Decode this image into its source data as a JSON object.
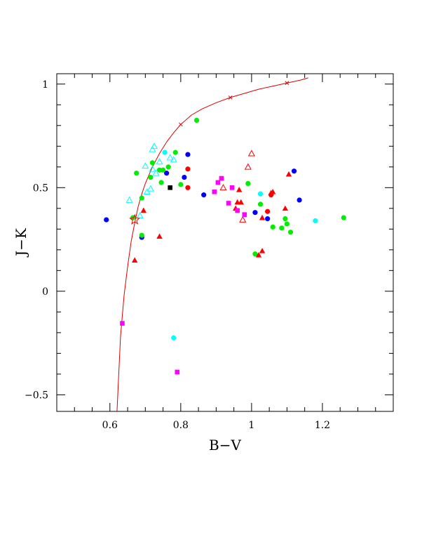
{
  "chart_data": {
    "type": "scatter",
    "xlabel": "B−V",
    "ylabel": "J−K",
    "xlim": [
      0.45,
      1.4
    ],
    "ylim": [
      -0.58,
      1.05
    ],
    "x_ticks": [
      0.6,
      0.8,
      1.0,
      1.2
    ],
    "x_tick_labels": [
      "0.6",
      "0.8",
      "1",
      "1.2"
    ],
    "y_ticks": [
      -0.5,
      0,
      0.5,
      1.0
    ],
    "y_tick_labels": [
      "−0.5",
      "0",
      "0.5",
      "1"
    ],
    "grid": false,
    "colors": {
      "red": "#ff0000",
      "green": "#00ee00",
      "blue": "#0000ff",
      "cyan": "#00ffff",
      "magenta": "#ff00ff",
      "black": "#000000",
      "curve": "#dd0000"
    },
    "curve": {
      "x": [
        0.62,
        0.625,
        0.63,
        0.64,
        0.65,
        0.66,
        0.67,
        0.68,
        0.69,
        0.7,
        0.72,
        0.74,
        0.76,
        0.78,
        0.8,
        0.83,
        0.86,
        0.9,
        0.94,
        0.98,
        1.02,
        1.06,
        1.1,
        1.14,
        1.16
      ],
      "y": [
        -0.58,
        -0.4,
        -0.22,
        -0.02,
        0.12,
        0.24,
        0.33,
        0.41,
        0.47,
        0.52,
        0.6,
        0.665,
        0.72,
        0.765,
        0.805,
        0.85,
        0.88,
        0.91,
        0.935,
        0.955,
        0.975,
        0.99,
        1.005,
        1.02,
        1.03
      ],
      "x_markers": [
        0.8,
        0.94,
        1.1
      ]
    },
    "sun_marker": {
      "x": 0.67,
      "y": 0.345
    },
    "series": [
      {
        "color": "blue",
        "marker": "circle",
        "points": [
          [
            0.59,
            0.345
          ],
          [
            0.69,
            0.26
          ],
          [
            0.76,
            0.57
          ],
          [
            0.82,
            0.66
          ],
          [
            0.81,
            0.55
          ],
          [
            0.865,
            0.465
          ],
          [
            1.01,
            0.38
          ],
          [
            1.045,
            0.35
          ],
          [
            1.12,
            0.58
          ],
          [
            1.135,
            0.44
          ]
        ]
      },
      {
        "color": "green",
        "marker": "circle",
        "points": [
          [
            0.845,
            0.825
          ],
          [
            0.675,
            0.57
          ],
          [
            0.69,
            0.27
          ],
          [
            0.665,
            0.355
          ],
          [
            0.69,
            0.45
          ],
          [
            0.715,
            0.55
          ],
          [
            0.72,
            0.62
          ],
          [
            0.74,
            0.585
          ],
          [
            0.745,
            0.525
          ],
          [
            0.75,
            0.585
          ],
          [
            0.765,
            0.6
          ],
          [
            0.785,
            0.67
          ],
          [
            0.8,
            0.515
          ],
          [
            0.99,
            0.52
          ],
          [
            1.01,
            0.18
          ],
          [
            1.025,
            0.42
          ],
          [
            1.06,
            0.31
          ],
          [
            1.085,
            0.305
          ],
          [
            1.095,
            0.35
          ],
          [
            1.1,
            0.325
          ],
          [
            1.11,
            0.285
          ],
          [
            1.26,
            0.355
          ]
        ]
      },
      {
        "color": "red",
        "marker": "circle",
        "points": [
          [
            0.82,
            0.59
          ],
          [
            0.82,
            0.5
          ],
          [
            1.045,
            0.385
          ],
          [
            1.055,
            0.465
          ]
        ]
      },
      {
        "color": "red",
        "marker": "triangle",
        "points": [
          [
            0.67,
            0.15
          ],
          [
            0.695,
            0.39
          ],
          [
            0.74,
            0.265
          ],
          [
            0.955,
            0.4
          ],
          [
            0.96,
            0.43
          ],
          [
            0.965,
            0.49
          ],
          [
            0.97,
            0.43
          ],
          [
            1.02,
            0.175
          ],
          [
            1.03,
            0.355
          ],
          [
            1.03,
            0.195
          ],
          [
            1.055,
            0.475
          ],
          [
            1.06,
            0.48
          ],
          [
            1.095,
            0.4
          ],
          [
            1.105,
            0.565
          ]
        ]
      },
      {
        "color": "red",
        "marker": "triangle-open",
        "points": [
          [
            0.92,
            0.5
          ],
          [
            0.975,
            0.345
          ],
          [
            0.99,
            0.6
          ],
          [
            1.0,
            0.665
          ]
        ]
      },
      {
        "color": "cyan",
        "marker": "triangle-open",
        "points": [
          [
            0.655,
            0.44
          ],
          [
            0.685,
            0.365
          ],
          [
            0.7,
            0.605
          ],
          [
            0.705,
            0.48
          ],
          [
            0.715,
            0.495
          ],
          [
            0.72,
            0.59
          ],
          [
            0.72,
            0.685
          ],
          [
            0.725,
            0.7
          ],
          [
            0.73,
            0.57
          ],
          [
            0.74,
            0.625
          ],
          [
            0.77,
            0.645
          ],
          [
            0.78,
            0.635
          ]
        ]
      },
      {
        "color": "cyan",
        "marker": "circle",
        "points": [
          [
            0.755,
            0.67
          ],
          [
            0.78,
            -0.225
          ],
          [
            1.025,
            0.47
          ],
          [
            1.18,
            0.34
          ]
        ]
      },
      {
        "color": "magenta",
        "marker": "square",
        "points": [
          [
            0.635,
            -0.155
          ],
          [
            0.79,
            -0.39
          ],
          [
            0.895,
            0.48
          ],
          [
            0.905,
            0.525
          ],
          [
            0.915,
            0.545
          ],
          [
            0.935,
            0.425
          ],
          [
            0.945,
            0.5
          ],
          [
            0.96,
            0.39
          ],
          [
            0.98,
            0.37
          ]
        ]
      },
      {
        "color": "black",
        "marker": "square",
        "points": [
          [
            0.77,
            0.5
          ]
        ]
      }
    ]
  }
}
